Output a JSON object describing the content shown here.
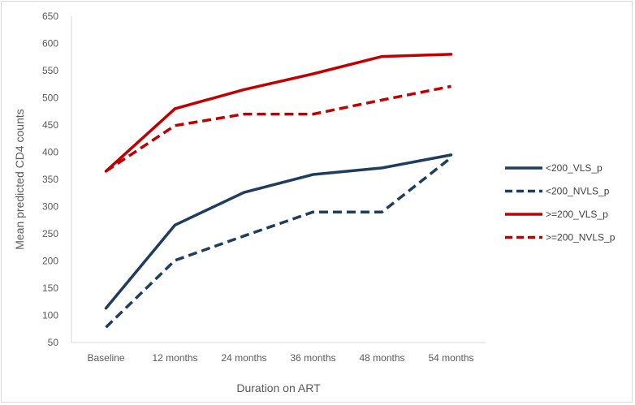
{
  "chart_data": {
    "type": "line",
    "title": "",
    "xlabel": "Duration on ART",
    "ylabel": "Mean predicted CD4 counts",
    "categories": [
      "Baseline",
      "12 months",
      "24 months",
      "36 months",
      "48 months",
      "54 months"
    ],
    "ylim": [
      50,
      650
    ],
    "yticks": [
      "50",
      "100",
      "150",
      "200",
      "250",
      "300",
      "350",
      "400",
      "450",
      "500",
      "550",
      "600",
      "650"
    ],
    "grid": false,
    "legend_position": "right",
    "series": [
      {
        "name": "<200_VLS_p",
        "values": [
          113,
          266,
          326,
          359,
          371,
          395
        ],
        "color": "#1f3d5e",
        "dash": "solid"
      },
      {
        "name": "<200_NVLS_p",
        "values": [
          78,
          201,
          246,
          290,
          290,
          390
        ],
        "color": "#1f3d5e",
        "dash": "dashed"
      },
      {
        "name": ">=200_VLS_p",
        "values": [
          365,
          480,
          515,
          544,
          576,
          580
        ],
        "color": "#c00000",
        "dash": "solid"
      },
      {
        "name": ">=200_NVLS_p",
        "values": [
          365,
          449,
          470,
          470,
          496,
          521
        ],
        "color": "#c00000",
        "dash": "dashed"
      }
    ]
  }
}
